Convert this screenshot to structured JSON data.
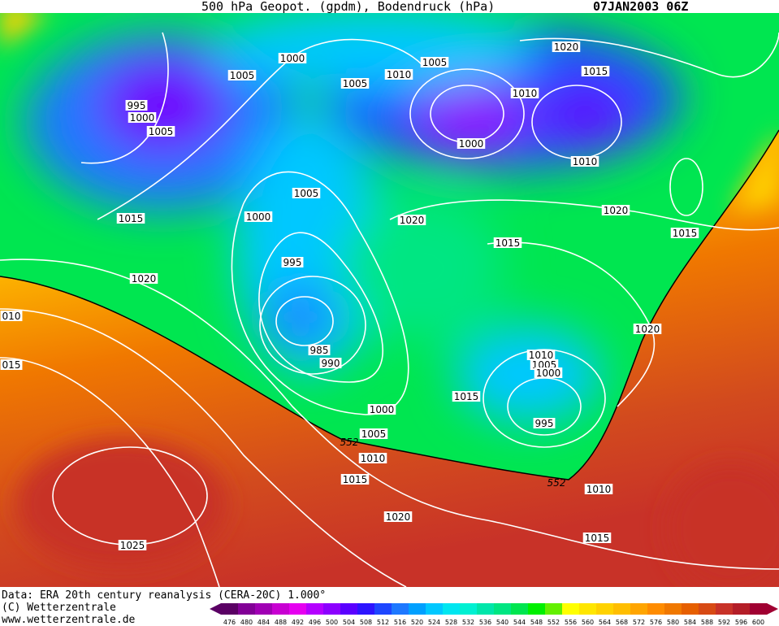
{
  "header": {
    "title": "500 hPa Geopot. (gpdm), Bodendruck (hPa)",
    "datetime": "07JAN2003 06Z"
  },
  "footer": {
    "source": "Data: ERA 20th century reanalysis (CERA-20C) 1.000°",
    "copyright": "(C) Wetterzentrale",
    "website": "www.wetterzentrale.de"
  },
  "map": {
    "isobar_labels": [
      1000,
      1005,
      1005,
      995,
      1000,
      1005,
      1005,
      1010,
      1020,
      1015,
      1010,
      1000,
      1010,
      1005,
      1000,
      1015,
      1020,
      1020,
      1015,
      1015,
      995,
      1020,
      "010",
      "015",
      985,
      990,
      1020,
      1010,
      1005,
      1000,
      1015,
      1000,
      995,
      1005,
      1010,
      1015,
      1010,
      1020,
      1015,
      1025
    ],
    "contour_labels": [
      552,
      552
    ]
  },
  "colorbar": {
    "levels": [
      476,
      480,
      484,
      488,
      492,
      496,
      500,
      504,
      508,
      512,
      516,
      520,
      524,
      528,
      532,
      536,
      540,
      544,
      548,
      552,
      556,
      560,
      564,
      568,
      572,
      576,
      580,
      584,
      588,
      592,
      596,
      600
    ],
    "colors": [
      "#5a0064",
      "#820096",
      "#a000b4",
      "#c800d2",
      "#e600f0",
      "#b400ff",
      "#8c00ff",
      "#5a00ff",
      "#2d14ff",
      "#1e46ff",
      "#1e78ff",
      "#00a0ff",
      "#00c8ff",
      "#00e6f0",
      "#00f0d2",
      "#00e6aa",
      "#00e682",
      "#00e650",
      "#00f000",
      "#64f000",
      "#ffff00",
      "#ffe600",
      "#ffd200",
      "#ffbe00",
      "#ffa500",
      "#ff8c00",
      "#f07800",
      "#e65f00",
      "#d74a14",
      "#c83228",
      "#b41e28",
      "#a00032"
    ]
  }
}
